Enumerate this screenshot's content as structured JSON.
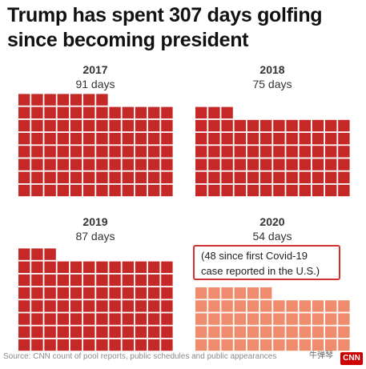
{
  "chart_data": {
    "type": "waffle",
    "title_line1": "Trump has spent 307 days golfing",
    "title_line2": "since becoming president",
    "panels": [
      {
        "year": "2017",
        "days_label": "91 days",
        "value": 91,
        "color": "#c62828"
      },
      {
        "year": "2018",
        "days_label": "75 days",
        "value": 75,
        "color": "#c62828"
      },
      {
        "year": "2019",
        "days_label": "87 days",
        "value": 87,
        "color": "#c62828"
      },
      {
        "year": "2020",
        "days_label": "54 days",
        "value": 54,
        "color": "#f08c6e",
        "note_line1": "(48 since first Covid-19",
        "note_line2": "case reported in the U.S.)"
      }
    ]
  },
  "source": "Source: CNN count of pool reports, public schedules and public appearances",
  "watermark": "牛弹琴",
  "logo_text": "CNN"
}
